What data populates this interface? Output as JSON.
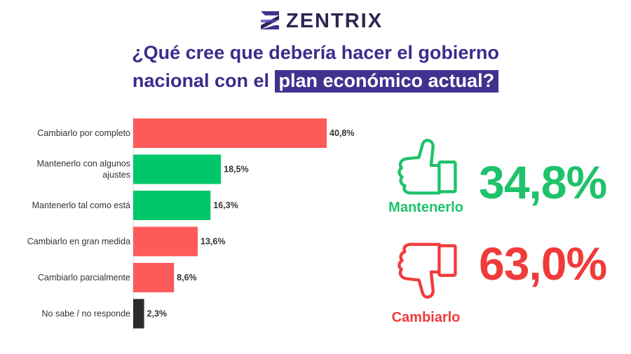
{
  "brand": {
    "name": "ZENTRIX"
  },
  "title": {
    "line1": "¿Qué cree que debería hacer el gobierno",
    "line2_plain": "nacional con el",
    "line2_highlight": "plan económico actual?"
  },
  "colors": {
    "green": "#00c86a",
    "red": "#ff5a5a",
    "dark": "#2b2b2b",
    "purple": "#43318f"
  },
  "chart_data": {
    "type": "bar",
    "orientation": "horizontal",
    "categories": [
      [
        "Cambiarlo por completo"
      ],
      [
        "Mantenerlo con algunos",
        "ajustes"
      ],
      [
        "Mantenerlo tal como está"
      ],
      [
        "Cambiarlo en gran medida"
      ],
      [
        "Cambiarlo parcialmente"
      ],
      [
        "No sabe / no responde"
      ]
    ],
    "values": [
      40.8,
      18.5,
      16.3,
      13.6,
      8.6,
      2.3
    ],
    "value_labels": [
      "40,8%",
      "18,5%",
      "16,3%",
      "13,6%",
      "8,6%",
      "2,3%"
    ],
    "bar_colors": [
      "#ff5a5a",
      "#00c86a",
      "#00c86a",
      "#ff5a5a",
      "#ff5a5a",
      "#2b2b2b"
    ],
    "grid": false,
    "legend": "none"
  },
  "summary": {
    "keep": {
      "label": "Mantenerlo",
      "value": "34,8%",
      "icon": "thumbs-up-icon"
    },
    "change": {
      "label": "Cambiarlo",
      "value": "63,0%",
      "icon": "thumbs-down-icon"
    }
  }
}
